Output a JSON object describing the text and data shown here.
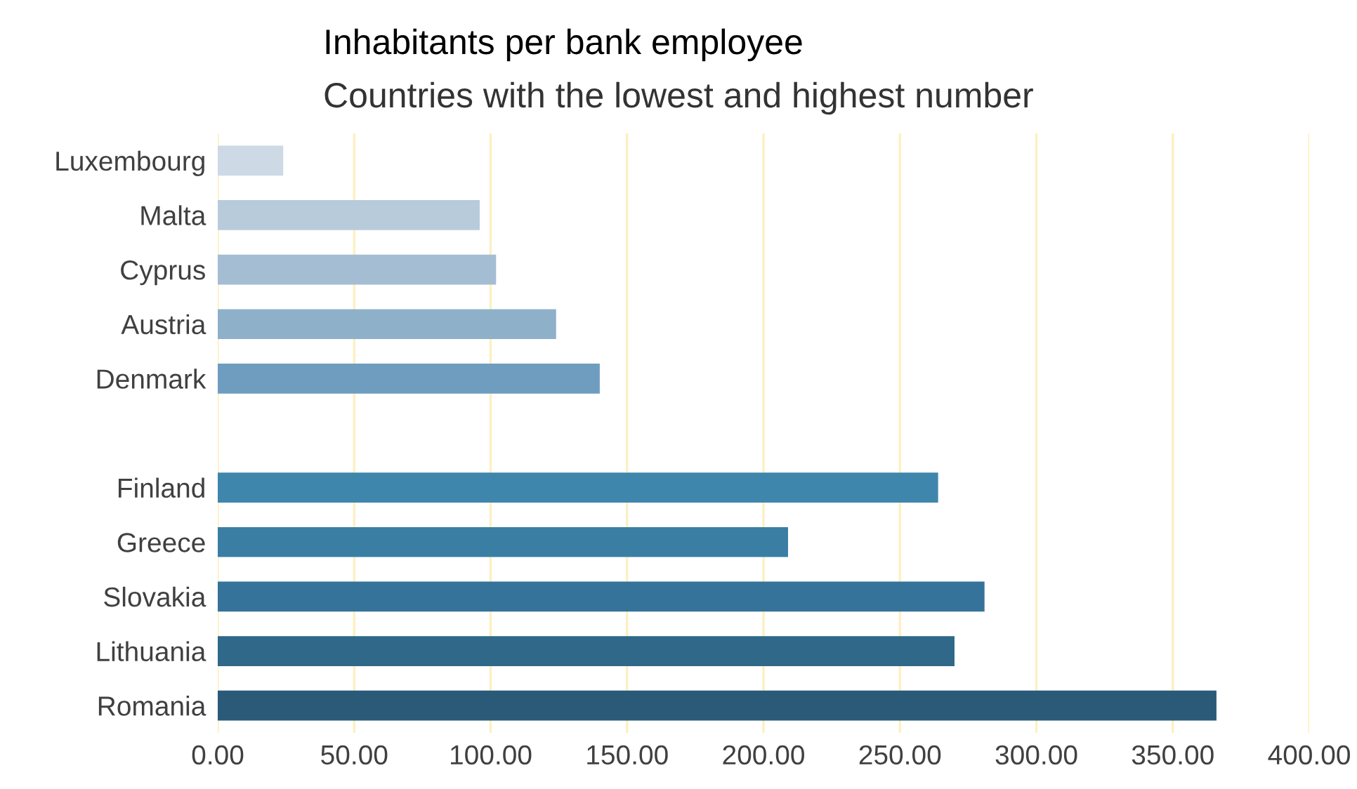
{
  "chart_data": {
    "type": "bar",
    "orientation": "horizontal",
    "title": "Inhabitants per bank employee",
    "subtitle": "Countries with the lowest and highest number",
    "categories": [
      "Luxembourg",
      "Malta",
      "Cyprus",
      "Austria",
      "Denmark",
      null,
      "Finland",
      "Greece",
      "Slovakia",
      "Lithuania",
      "Romania"
    ],
    "values": [
      24,
      96,
      102,
      124,
      140,
      null,
      264,
      209,
      281,
      270,
      366
    ],
    "colors": [
      "#cdd9e5",
      "#b8cbdb",
      "#a5bdd3",
      "#8fb0c9",
      "#6e9dbf",
      "#ffffff",
      "#3f86ac",
      "#3a7ea4",
      "#35739a",
      "#2f6888",
      "#2a5a78"
    ],
    "xlim": [
      0,
      400
    ],
    "xticks": [
      {
        "value": 0,
        "label": "0.00"
      },
      {
        "value": 50,
        "label": "50.00"
      },
      {
        "value": 100,
        "label": "100.00"
      },
      {
        "value": 150,
        "label": "150.00"
      },
      {
        "value": 200,
        "label": "200.00"
      },
      {
        "value": 250,
        "label": "250.00"
      },
      {
        "value": 300,
        "label": "300.00"
      },
      {
        "value": 350,
        "label": "350.00"
      },
      {
        "value": 400,
        "label": "400.00"
      }
    ],
    "grid": "x"
  }
}
